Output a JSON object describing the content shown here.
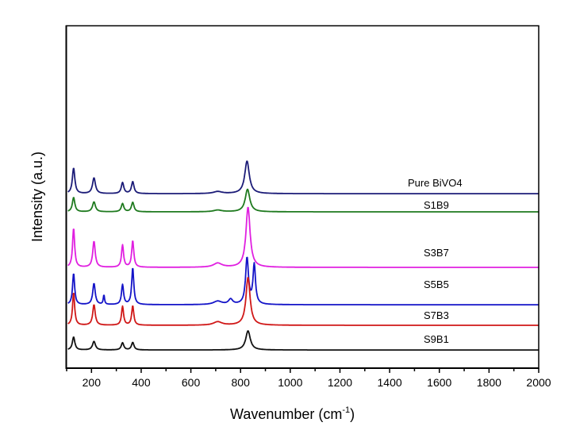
{
  "chart_data": {
    "type": "line",
    "title": "",
    "xlabel": "Wavenumber (cm",
    "xlabel_sup": "-1",
    "xlabel_close": ")",
    "ylabel": "Intensity (a.u.)",
    "xlim": [
      100,
      2000
    ],
    "ylim": [
      0,
      100
    ],
    "xticks": [
      200,
      400,
      600,
      800,
      1000,
      1200,
      1400,
      1600,
      1800,
      2000
    ],
    "yticks_shown": false,
    "grid": false,
    "legend": "labels placed right of each trace",
    "series": [
      {
        "name": "Pure BiVO4",
        "color": "#1c1c78",
        "baseline": 50.9,
        "peaks": [
          {
            "x": 128,
            "height": 7.5,
            "width": 12
          },
          {
            "x": 210,
            "height": 4.6,
            "width": 14
          },
          {
            "x": 325,
            "height": 3.2,
            "width": 12
          },
          {
            "x": 366,
            "height": 3.5,
            "width": 12
          },
          {
            "x": 708,
            "height": 0.6,
            "width": 40
          },
          {
            "x": 826,
            "height": 9.5,
            "width": 22
          }
        ]
      },
      {
        "name": "S1B9",
        "color": "#1f7a1f",
        "baseline": 45.6,
        "peaks": [
          {
            "x": 128,
            "height": 4.2,
            "width": 12
          },
          {
            "x": 210,
            "height": 2.9,
            "width": 14
          },
          {
            "x": 325,
            "height": 2.4,
            "width": 12
          },
          {
            "x": 366,
            "height": 2.8,
            "width": 12
          },
          {
            "x": 708,
            "height": 0.5,
            "width": 40
          },
          {
            "x": 828,
            "height": 6.6,
            "width": 22
          }
        ]
      },
      {
        "name": "S3B7",
        "color": "#e020e0",
        "baseline": 29.4,
        "peaks": [
          {
            "x": 128,
            "height": 11.5,
            "width": 10
          },
          {
            "x": 210,
            "height": 7.6,
            "width": 12
          },
          {
            "x": 325,
            "height": 6.5,
            "width": 10
          },
          {
            "x": 366,
            "height": 7.8,
            "width": 10
          },
          {
            "x": 708,
            "height": 1.2,
            "width": 40
          },
          {
            "x": 830,
            "height": 17.6,
            "width": 20
          }
        ]
      },
      {
        "name": "S5B5",
        "color": "#1414c8",
        "baseline": 18.5,
        "peaks": [
          {
            "x": 128,
            "height": 9.2,
            "width": 10
          },
          {
            "x": 210,
            "height": 6.2,
            "width": 12
          },
          {
            "x": 250,
            "height": 2.8,
            "width": 6
          },
          {
            "x": 325,
            "height": 5.8,
            "width": 10
          },
          {
            "x": 366,
            "height": 10.8,
            "width": 10
          },
          {
            "x": 708,
            "height": 1.0,
            "width": 40
          },
          {
            "x": 760,
            "height": 1.5,
            "width": 20
          },
          {
            "x": 826,
            "height": 13.5,
            "width": 14
          },
          {
            "x": 855,
            "height": 11.5,
            "width": 12
          }
        ]
      },
      {
        "name": "S7B3",
        "color": "#d01818",
        "baseline": 12.5,
        "peaks": [
          {
            "x": 128,
            "height": 9.6,
            "width": 10
          },
          {
            "x": 210,
            "height": 6.0,
            "width": 12
          },
          {
            "x": 325,
            "height": 5.5,
            "width": 10
          },
          {
            "x": 366,
            "height": 5.7,
            "width": 10
          },
          {
            "x": 708,
            "height": 1.0,
            "width": 40
          },
          {
            "x": 830,
            "height": 14.0,
            "width": 20
          }
        ]
      },
      {
        "name": "S9B1",
        "color": "#111111",
        "baseline": 5.3,
        "peaks": [
          {
            "x": 128,
            "height": 3.8,
            "width": 12
          },
          {
            "x": 210,
            "height": 2.5,
            "width": 14
          },
          {
            "x": 325,
            "height": 2.1,
            "width": 12
          },
          {
            "x": 366,
            "height": 2.2,
            "width": 12
          },
          {
            "x": 830,
            "height": 5.6,
            "width": 22
          }
        ]
      }
    ]
  }
}
